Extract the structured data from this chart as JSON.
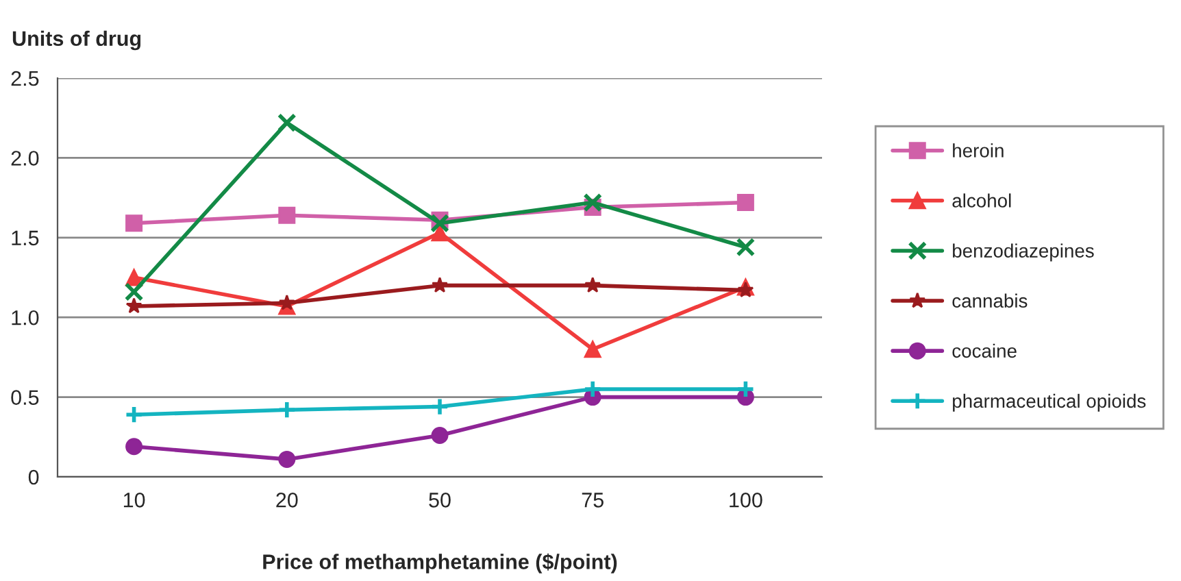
{
  "chart_data": {
    "type": "line",
    "ylabel": "Units of drug",
    "xlabel": "Price of methamphetamine ($/point)",
    "categories": [
      "10",
      "20",
      "50",
      "75",
      "100"
    ],
    "series": [
      {
        "name": "heroin",
        "color": "#d060a8",
        "marker": "square",
        "values": [
          1.59,
          1.64,
          1.61,
          1.69,
          1.72
        ]
      },
      {
        "name": "alcohol",
        "color": "#f03c3c",
        "marker": "triangle",
        "values": [
          1.25,
          1.07,
          1.53,
          0.8,
          1.19
        ]
      },
      {
        "name": "benzodiazepines",
        "color": "#138a46",
        "marker": "cross",
        "values": [
          1.16,
          2.22,
          1.59,
          1.72,
          1.44
        ]
      },
      {
        "name": "cannabis",
        "color": "#9a1b1e",
        "marker": "star",
        "values": [
          1.07,
          1.09,
          1.2,
          1.2,
          1.17
        ]
      },
      {
        "name": "cocaine",
        "color": "#8e2596",
        "marker": "circle",
        "values": [
          0.19,
          0.11,
          0.26,
          0.5,
          0.5
        ]
      },
      {
        "name": "pharmaceutical opioids",
        "color": "#14b4c0",
        "marker": "plus",
        "values": [
          0.39,
          0.42,
          0.44,
          0.55,
          0.55
        ]
      }
    ],
    "ylim": [
      0,
      2.5
    ],
    "yticks": [
      {
        "value": 0,
        "label": "0"
      },
      {
        "value": 0.5,
        "label": "0.5"
      },
      {
        "value": 1.0,
        "label": "1.0"
      },
      {
        "value": 1.5,
        "label": "1.5"
      },
      {
        "value": 2.0,
        "label": "2.0"
      },
      {
        "value": 2.5,
        "label": "2.5"
      }
    ],
    "grid": "y",
    "legend": "right",
    "line_style": "solid"
  }
}
